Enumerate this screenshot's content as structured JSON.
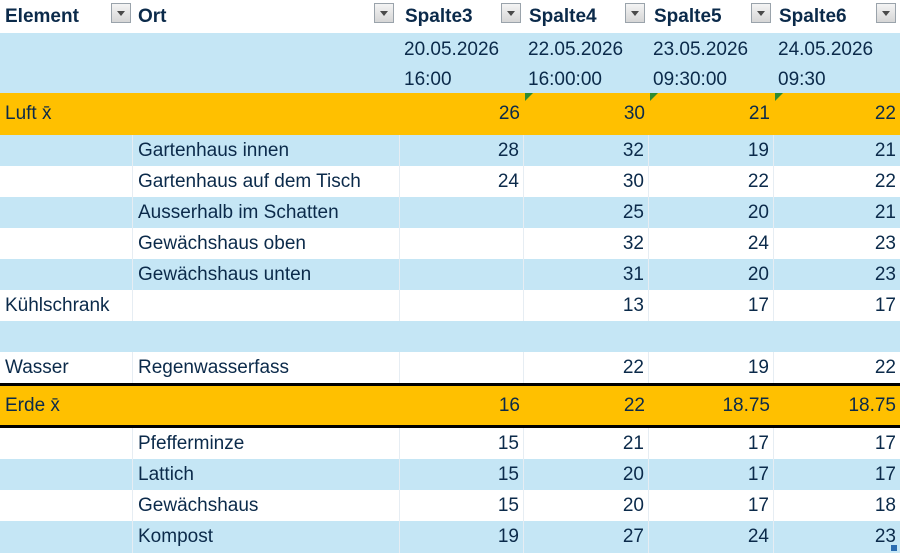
{
  "headers": [
    "Element",
    "Ort",
    "Spalte3",
    "Spalte4",
    "Spalte5",
    "Spalte6"
  ],
  "date_row": [
    {
      "date": "20.05.2026",
      "time": "16:00"
    },
    {
      "date": "22.05.2026",
      "time": "16:00:00"
    },
    {
      "date": "23.05.2026",
      "time": "09:30:00"
    },
    {
      "date": "24.05.2026",
      "time": "09:30"
    }
  ],
  "rows": [
    {
      "element": "Luft x̄",
      "ort": "",
      "values": [
        "26",
        "30",
        "21",
        "22"
      ]
    },
    {
      "element": "",
      "ort": "Gartenhaus innen",
      "values": [
        "28",
        "32",
        "19",
        "21"
      ]
    },
    {
      "element": "",
      "ort": "Gartenhaus auf dem Tisch",
      "values": [
        "24",
        "30",
        "22",
        "22"
      ]
    },
    {
      "element": "",
      "ort": "Ausserhalb im Schatten",
      "values": [
        "",
        "25",
        "20",
        "21"
      ]
    },
    {
      "element": "",
      "ort": "Gewächshaus oben",
      "values": [
        "",
        "32",
        "24",
        "23"
      ]
    },
    {
      "element": "",
      "ort": "Gewächshaus unten",
      "values": [
        "",
        "31",
        "20",
        "23"
      ]
    },
    {
      "element": "Kühlschrank",
      "ort": "",
      "values": [
        "",
        "13",
        "17",
        "17"
      ]
    },
    {
      "element": "",
      "ort": "",
      "values": [
        "",
        "",
        "",
        ""
      ]
    },
    {
      "element": "Wasser",
      "ort": "Regenwasserfass",
      "values": [
        "",
        "22",
        "19",
        "22"
      ]
    },
    {
      "element": "Erde x̄",
      "ort": "",
      "values": [
        "16",
        "22",
        "18.75",
        "18.75"
      ]
    },
    {
      "element": "",
      "ort": "Pfefferminze",
      "values": [
        "15",
        "21",
        "17",
        "17"
      ]
    },
    {
      "element": "",
      "ort": "Lattich",
      "values": [
        "15",
        "20",
        "17",
        "17"
      ]
    },
    {
      "element": "",
      "ort": "Gewächshaus",
      "values": [
        "15",
        "20",
        "17",
        "18"
      ]
    },
    {
      "element": "",
      "ort": "Kompost",
      "values": [
        "19",
        "27",
        "24",
        "23"
      ]
    }
  ]
}
